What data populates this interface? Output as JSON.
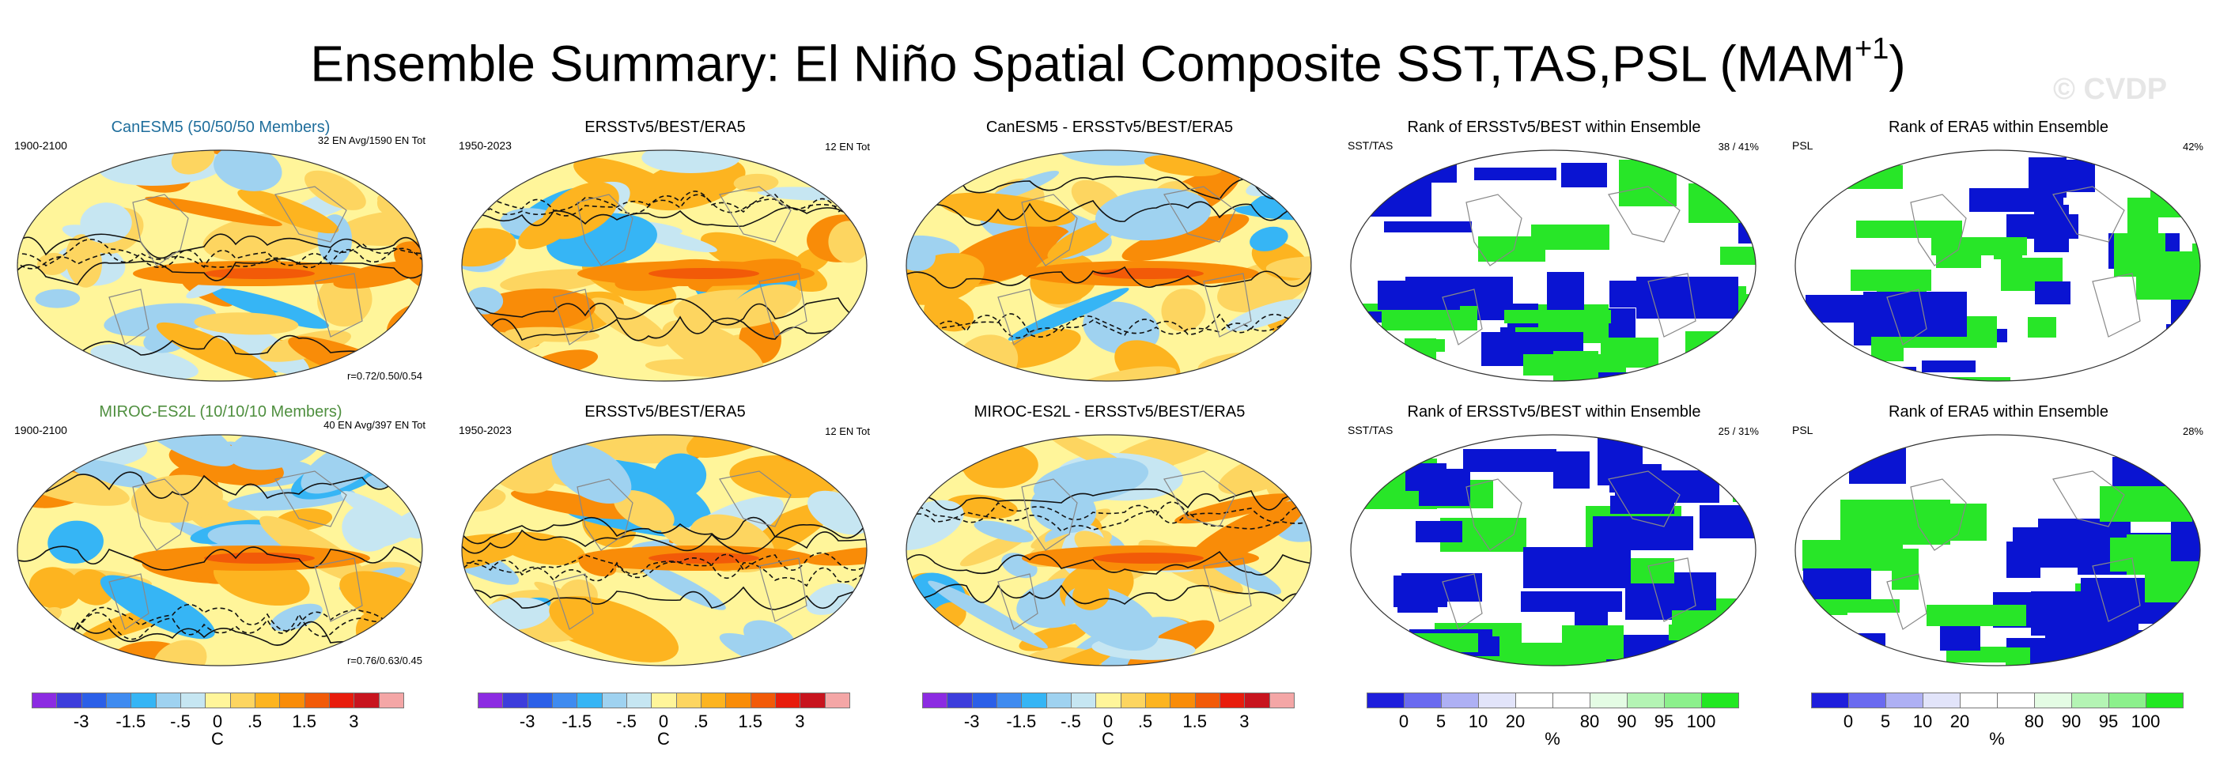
{
  "title": {
    "main": "Ensemble Summary: El Niño Spatial Composite SST,TAS,PSL (MAM",
    "sup": "+1",
    "end": ")"
  },
  "watermark": "© CVDP",
  "rows": [
    {
      "panels": [
        {
          "title": "CanESM5 (50/50/50 Members)",
          "left": "1900-2100",
          "right": "32 EN Avg/1590 EN Tot",
          "bottom": "r=0.72/0.50/0.54",
          "kind": "anom"
        },
        {
          "title": "ERSSTv5/BEST/ERA5",
          "left": "1950-2023",
          "right": "12 EN Tot",
          "bottom": "",
          "kind": "anom"
        },
        {
          "title": "CanESM5 - ERSSTv5/BEST/ERA5",
          "left": "",
          "right": "",
          "bottom": "",
          "kind": "anom"
        },
        {
          "title": "Rank of ERSSTv5/BEST within Ensemble",
          "left": "SST/TAS",
          "right": "38 /  41%",
          "bottom": "",
          "kind": "rank"
        },
        {
          "title": "Rank of ERA5 within Ensemble",
          "left": "PSL",
          "right": "42%",
          "bottom": "",
          "kind": "rank"
        }
      ]
    },
    {
      "panels": [
        {
          "title": "MIROC-ES2L (10/10/10 Members)",
          "left": "1900-2100",
          "right": "40 EN Avg/397 EN Tot",
          "bottom": "r=0.76/0.63/0.45",
          "kind": "anom"
        },
        {
          "title": "ERSSTv5/BEST/ERA5",
          "left": "1950-2023",
          "right": "12 EN Tot",
          "bottom": "",
          "kind": "anom"
        },
        {
          "title": "MIROC-ES2L - ERSSTv5/BEST/ERA5",
          "left": "",
          "right": "",
          "bottom": "",
          "kind": "anom"
        },
        {
          "title": "Rank of ERSSTv5/BEST within Ensemble",
          "left": "SST/TAS",
          "right": "25 /  31%",
          "bottom": "",
          "kind": "rank"
        },
        {
          "title": "Rank of ERA5 within Ensemble",
          "left": "PSL",
          "right": "28%",
          "bottom": "",
          "kind": "rank"
        }
      ]
    }
  ],
  "colorbars": {
    "anom": {
      "unit": "C",
      "colors": [
        "#8c2be2",
        "#3d3ddc",
        "#2b5fe8",
        "#3f8bf0",
        "#36b5f5",
        "#9fd2f0",
        "#c6e6f2",
        "#fff59a",
        "#fdd560",
        "#fdb420",
        "#f98c08",
        "#f25a08",
        "#e81c0c",
        "#c8141e",
        "#f4a6a6"
      ],
      "ticks": [
        {
          "label": "-3",
          "index": 2
        },
        {
          "label": "-1.5",
          "index": 4
        },
        {
          "label": "-.5",
          "index": 6
        },
        {
          "label": "0",
          "index": 7.5
        },
        {
          "label": ".5",
          "index": 9
        },
        {
          "label": "1.5",
          "index": 11
        },
        {
          "label": "3",
          "index": 13
        }
      ]
    },
    "rank": {
      "unit": "%",
      "colors": [
        "#1e1edc",
        "#6a6af0",
        "#aeb0f4",
        "#e2e4fa",
        "#ffffff",
        "#ffffff",
        "#e4fce4",
        "#b4f4b4",
        "#8cf08c",
        "#22e822"
      ],
      "ticks": [
        {
          "label": "0",
          "index": 1
        },
        {
          "label": "5",
          "index": 2
        },
        {
          "label": "10",
          "index": 3
        },
        {
          "label": "20",
          "index": 4
        },
        {
          "label": "80",
          "index": 6
        },
        {
          "label": "90",
          "index": 7
        },
        {
          "label": "95",
          "index": 8
        },
        {
          "label": "100",
          "index": 9
        }
      ]
    }
  },
  "colors": {
    "rank_low": "#0a14d2",
    "rank_high": "#28e628",
    "anom_warm": "#fdb420",
    "anom_cool": "#9fd2f0",
    "title_teal": "#1f6e9c",
    "title_green": "#4f8f3f"
  }
}
